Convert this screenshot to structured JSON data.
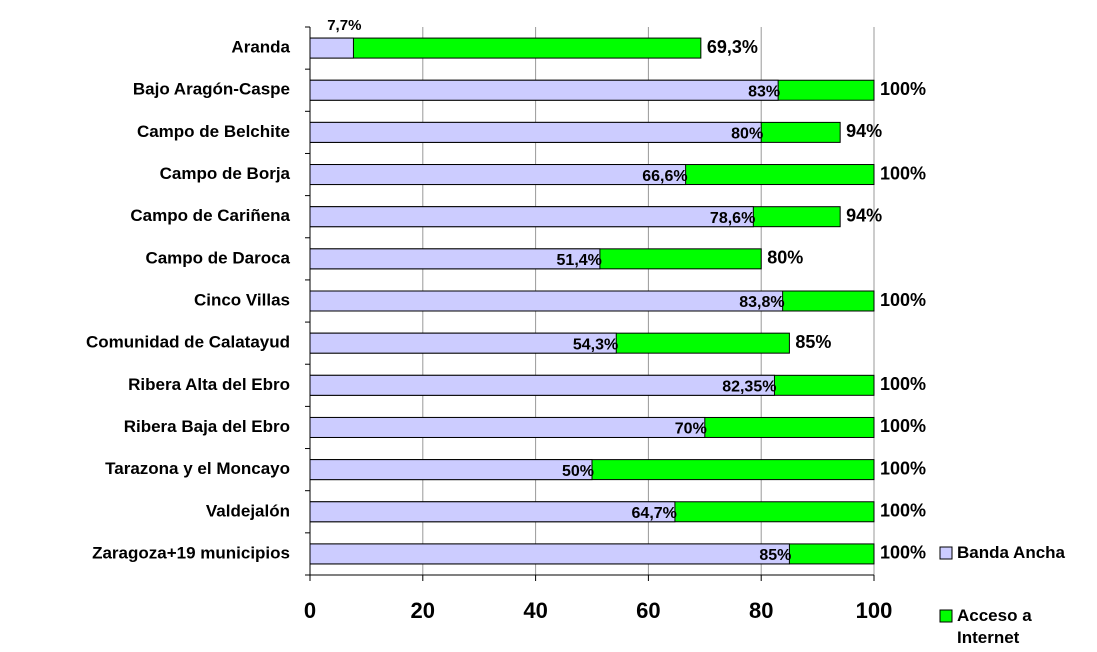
{
  "chart_data": {
    "type": "bar",
    "orientation": "horizontal",
    "overlap": true,
    "categories": [
      "Aranda",
      "Bajo Aragón-Caspe",
      "Campo de Belchite",
      "Campo de Borja",
      "Campo de Cariñena ",
      "Campo de Daroca",
      "Cinco Villas",
      "Comunidad de Calatayud",
      "Ribera Alta del Ebro",
      "Ribera Baja del Ebro",
      "Tarazona y el Moncayo",
      "Valdejalón",
      "Zaragoza+19 municipios"
    ],
    "series": [
      {
        "name": "Acceso a Internet",
        "color": "#00ff00",
        "values": [
          69.3,
          100,
          94,
          100,
          94,
          80,
          100,
          85,
          100,
          100,
          100,
          100,
          100
        ],
        "value_labels": [
          "69,3%",
          "100%",
          "94%",
          "100%",
          "94%",
          "80%",
          "100%",
          "85%",
          "100%",
          "100%",
          "100%",
          "100%",
          "100%"
        ]
      },
      {
        "name": "Banda Ancha",
        "color": "#ccccff",
        "values": [
          7.7,
          83,
          80,
          66.6,
          78.6,
          51.4,
          83.8,
          54.3,
          82.35,
          70,
          50,
          64.7,
          85
        ],
        "value_labels": [
          "7,7%",
          "83%",
          "80%",
          "66,6%",
          "78,6%",
          "51,4%",
          "83,8%",
          "54,3%",
          "82,35%",
          "70%",
          "50%",
          "64,7%",
          "85%"
        ]
      }
    ],
    "xlim": [
      0,
      100
    ],
    "xticks": [
      0,
      20,
      40,
      60,
      80,
      100
    ],
    "grid": true,
    "legend": "right"
  }
}
